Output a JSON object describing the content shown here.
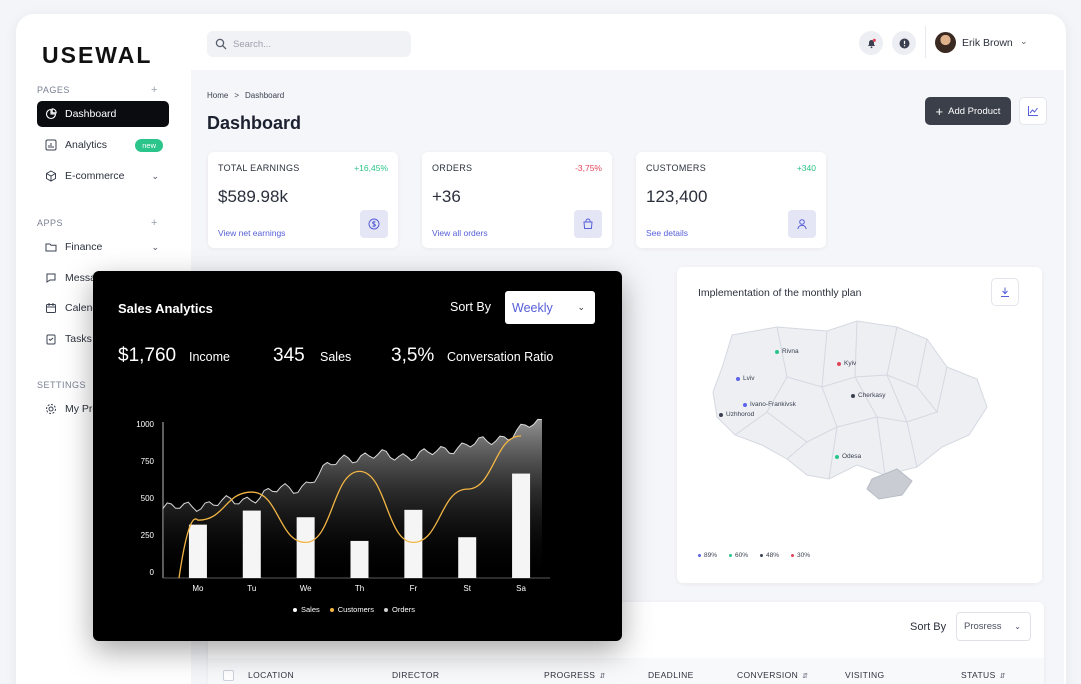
{
  "app": {
    "logo": "USEWAL"
  },
  "sidebar": {
    "pages_title": "PAGES",
    "apps_title": "APPS",
    "settings_title": "SETTINGS",
    "items": [
      {
        "label": "Dashboard"
      },
      {
        "label": "Analytics",
        "badge": "new"
      },
      {
        "label": "E-commerce"
      },
      {
        "label": "Finance"
      },
      {
        "label": "Messages"
      },
      {
        "label": "Calendar"
      },
      {
        "label": "Tasks"
      },
      {
        "label": "My Profile"
      }
    ]
  },
  "header": {
    "search_placeholder": "Search...",
    "user_name": "Erik Brown"
  },
  "breadcrumb": {
    "home": "Home",
    "sep": ">",
    "current": "Dashboard"
  },
  "page_title": "Dashboard",
  "actions": {
    "add_product": "Add Product"
  },
  "cards": [
    {
      "title": "TOTAL EARNINGS",
      "delta": "+16,45%",
      "value": "$589.98k",
      "link": "View net earnings"
    },
    {
      "title": "ORDERS",
      "delta": "-3,75%",
      "value": "+36",
      "link": "View all orders"
    },
    {
      "title": "CUSTOMERS",
      "delta": "+340",
      "value": "123,400",
      "link": "See details"
    }
  ],
  "map": {
    "title": "Implementation of the monthly plan",
    "cities": [
      "Rivna",
      "Kyiv",
      "Lviv",
      "Cherkasy",
      "Ivano-Frankivsk",
      "Uzhhorod",
      "Odesa"
    ],
    "legend": [
      {
        "label": "89%",
        "color": "#5b63e6"
      },
      {
        "label": "60%",
        "color": "#2bc48a"
      },
      {
        "label": "48%",
        "color": "#3a4050"
      },
      {
        "label": "30%",
        "color": "#e0455a"
      }
    ]
  },
  "table": {
    "sort_label": "Sort By",
    "sort_value": "Prosress",
    "columns": [
      "LOCATION",
      "DIRECTOR",
      "PROGRESS",
      "DEADLINE",
      "CONVERSION",
      "VISITING",
      "STATUS"
    ]
  },
  "sales": {
    "title": "Sales Analytics",
    "sort_label": "Sort By",
    "sort_value": "Weekly",
    "stats": [
      {
        "value": "$1,760",
        "label": "Income"
      },
      {
        "value": "345",
        "label": "Sales"
      },
      {
        "value": "3,5%",
        "label": "Conversation Ratio"
      }
    ]
  },
  "chart_data": {
    "type": "bar",
    "categories": [
      "Mo",
      "Tu",
      "We",
      "Th",
      "Fr",
      "St",
      "Sa"
    ],
    "y_ticks": [
      0,
      250,
      500,
      750,
      1000
    ],
    "ylim": [
      0,
      1000
    ],
    "series": [
      {
        "name": "Sales",
        "type": "bar",
        "values": [
          320,
          415,
          370,
          210,
          420,
          235,
          665
        ]
      },
      {
        "name": "Customers",
        "type": "line",
        "values": [
          350,
          540,
          200,
          680,
          200,
          560,
          920
        ]
      },
      {
        "name": "Orders",
        "type": "area",
        "values": [
          430,
          470,
          560,
          780,
          790,
          870,
          1000
        ]
      }
    ]
  }
}
